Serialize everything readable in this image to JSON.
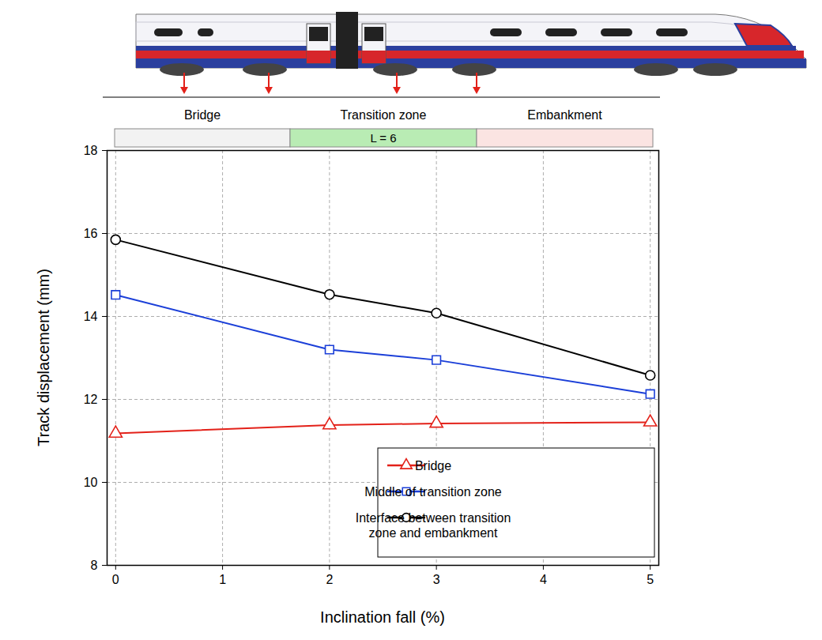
{
  "chart_data": {
    "type": "line",
    "x_label": "Inclination fall (%)",
    "y_label": "Track displacement (mm)",
    "x": [
      0,
      2,
      3,
      5
    ],
    "series": [
      {
        "name": "Bridge",
        "color": "#e32119",
        "marker": "triangle",
        "values": [
          11.18,
          11.38,
          11.42,
          11.45
        ]
      },
      {
        "name": "Middle of transition zone",
        "color": "#1b3fd8",
        "marker": "square",
        "values": [
          14.52,
          13.2,
          12.95,
          12.13
        ]
      },
      {
        "name": "Interface between transition zone and embankment",
        "color": "#000000",
        "marker": "circle",
        "values": [
          15.85,
          14.53,
          14.08,
          12.58
        ]
      }
    ],
    "xlim": [
      -0.08,
      5.08
    ],
    "xticks": [
      0,
      1,
      2,
      3,
      4,
      5
    ],
    "ylim": [
      8,
      18
    ],
    "yticks": [
      8,
      10,
      12,
      14,
      16,
      18
    ],
    "grid": true,
    "legend": "lower right",
    "annotations": [
      {
        "text": "Bridge",
        "color": "#f2f2f2"
      },
      {
        "text": "Transition zone",
        "label": "L = 6",
        "color": "#b9ecb4"
      },
      {
        "text": "Embankment",
        "color": "#fbe4e2"
      }
    ]
  }
}
